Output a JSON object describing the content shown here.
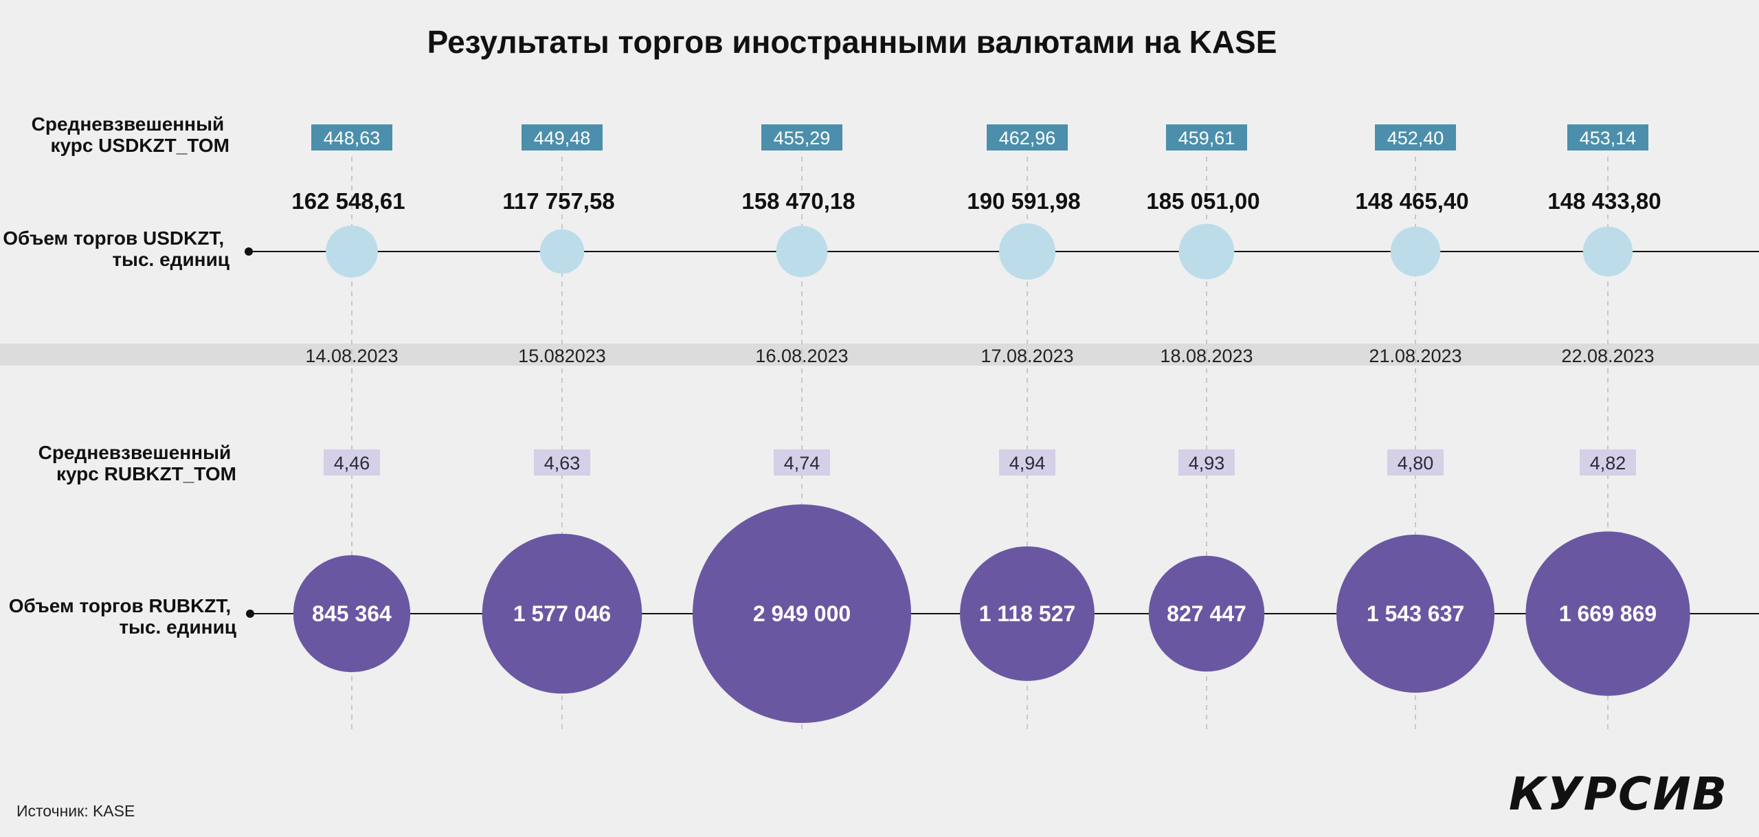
{
  "title": "Результаты торгов иностранными валютами на KASE",
  "labels": {
    "usd_rate": [
      "Средневзвешенный",
      "курс USDKZT_TOM"
    ],
    "usd_volume": [
      "Объем торгов USDKZT,",
      "тыс. единиц"
    ],
    "rub_rate": [
      "Средневзвешенный",
      "курс RUBKZT_TOM"
    ],
    "rub_volume": [
      "Объем торгов RUBKZT,",
      "тыс. единиц"
    ]
  },
  "source": "Источник: KASE",
  "logo": "КУРСИВ",
  "colors": {
    "background": "#efefef",
    "date_band": "#dcdcdc",
    "usd_rate_box": "#4b8fac",
    "usd_bubble": "#bcdce9",
    "rub_rate_box": "#d5cfe7",
    "rub_bubble": "#6a57a2",
    "line": "#111111",
    "guide": "#bbbbbb"
  },
  "chart_data": {
    "type": "bubble-timeline",
    "dates": [
      "14.08.2023",
      "15.082023",
      "16.08.2023",
      "17.08.2023",
      "18.08.2023",
      "21.08.2023",
      "22.08.2023"
    ],
    "series": [
      {
        "name": "Средневзвешенный курс USDKZT_TOM",
        "labels": [
          "448,63",
          "449,48",
          "455,29",
          "462,96",
          "459,61",
          "452,40",
          "453,14"
        ],
        "values": [
          448.63,
          449.48,
          455.29,
          462.96,
          459.61,
          452.4,
          453.14
        ]
      },
      {
        "name": "Объем торгов USDKZT, тыс. единиц",
        "labels": [
          "162 548,61",
          "117 757,58",
          "158 470,18",
          "190 591,98",
          "185 051,00",
          "148 465,40",
          "148 433,80"
        ],
        "values": [
          162548.61,
          117757.58,
          158470.18,
          190591.98,
          185051.0,
          148465.4,
          148433.8
        ]
      },
      {
        "name": "Средневзвешенный курс RUBKZT_TOM",
        "labels": [
          "4,46",
          "4,63",
          "4,74",
          "4,94",
          "4,93",
          "4,80",
          "4,82"
        ],
        "values": [
          4.46,
          4.63,
          4.74,
          4.94,
          4.93,
          4.8,
          4.82
        ]
      },
      {
        "name": "Объем торгов RUBKZT, тыс. единиц",
        "labels": [
          "845 364",
          "1 577 046",
          "2 949 000",
          "1 118 527",
          "827 447",
          "1 543 637",
          "1 669 869"
        ],
        "values": [
          845364,
          1577046,
          2949000,
          1118527,
          827447,
          1543637,
          1669869
        ]
      }
    ]
  }
}
